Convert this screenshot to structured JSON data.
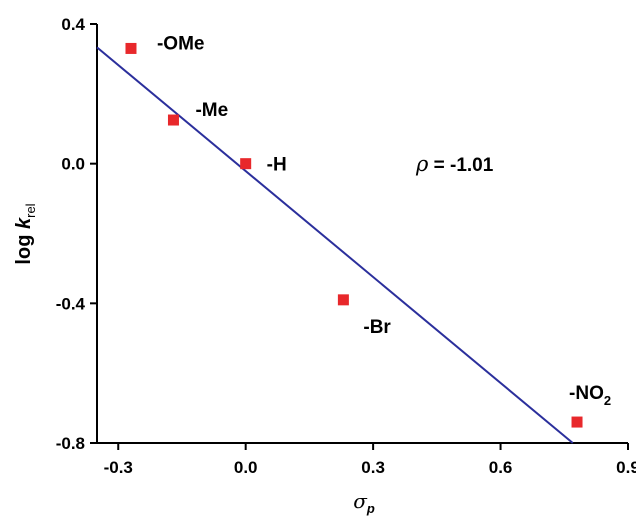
{
  "chart_data": {
    "type": "scatter",
    "xlabel": "σ",
    "xlabel_sub": "p",
    "ylabel": "log ",
    "ylabel_k": "k",
    "ylabel_sub": "rel",
    "xlim": [
      -0.35,
      0.9
    ],
    "ylim": [
      -0.8,
      0.4
    ],
    "x_ticks": [
      -0.3,
      0.0,
      0.3,
      0.6,
      0.9
    ],
    "x_tick_labels": [
      "-0.3",
      "0.0",
      "0.3",
      "0.6",
      "0.9"
    ],
    "y_ticks": [
      0.4,
      0.0,
      -0.4,
      -0.8
    ],
    "y_tick_labels": [
      "0.4",
      "0.0",
      "-0.4",
      "-0.8"
    ],
    "points": [
      {
        "label": "-OMe",
        "x": -0.27,
        "y": 0.33
      },
      {
        "label": "-Me",
        "x": -0.17,
        "y": 0.125
      },
      {
        "label": "-H",
        "x": 0.0,
        "y": 0.0
      },
      {
        "label": "-Br",
        "x": 0.23,
        "y": -0.39
      },
      {
        "label": "-NO",
        "label_sub": "2",
        "x": 0.78,
        "y": -0.74
      }
    ],
    "fit_line": {
      "x": [
        -0.35,
        0.77
      ],
      "y": [
        0.333,
        -0.8
      ]
    },
    "annotation": {
      "symbol": "ρ",
      "text": " = -1.01"
    },
    "colors": {
      "points": "#e8282b",
      "line": "#2b2f9c",
      "axes": "#000000"
    }
  }
}
